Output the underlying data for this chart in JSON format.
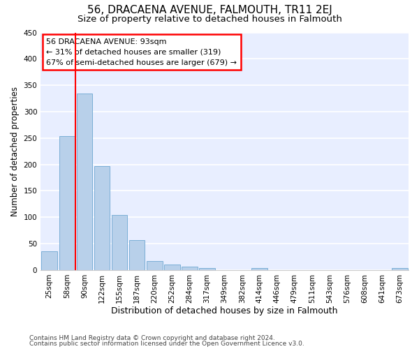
{
  "title": "56, DRACAENA AVENUE, FALMOUTH, TR11 2EJ",
  "subtitle": "Size of property relative to detached houses in Falmouth",
  "xlabel": "Distribution of detached houses by size in Falmouth",
  "ylabel": "Number of detached properties",
  "footnote1": "Contains HM Land Registry data © Crown copyright and database right 2024.",
  "footnote2": "Contains public sector information licensed under the Open Government Licence v3.0.",
  "bar_labels": [
    "25sqm",
    "58sqm",
    "90sqm",
    "122sqm",
    "155sqm",
    "187sqm",
    "220sqm",
    "252sqm",
    "284sqm",
    "317sqm",
    "349sqm",
    "382sqm",
    "414sqm",
    "446sqm",
    "479sqm",
    "511sqm",
    "543sqm",
    "576sqm",
    "608sqm",
    "641sqm",
    "673sqm"
  ],
  "bar_values": [
    35,
    254,
    335,
    197,
    105,
    57,
    17,
    10,
    7,
    4,
    0,
    0,
    4,
    0,
    0,
    0,
    0,
    0,
    0,
    0,
    4
  ],
  "bar_color": "#b8d0ea",
  "bar_edge_color": "#7aaed6",
  "ylim_max": 450,
  "yticks": [
    0,
    50,
    100,
    150,
    200,
    250,
    300,
    350,
    400,
    450
  ],
  "property_line_x": 1.5,
  "annotation_title": "56 DRACAENA AVENUE: 93sqm",
  "annotation_line1": "← 31% of detached houses are smaller (319)",
  "annotation_line2": "67% of semi-detached houses are larger (679) →",
  "bg_color": "#e8eeff",
  "grid_color": "#ffffff",
  "title_fontsize": 11,
  "subtitle_fontsize": 9.5,
  "ylabel_fontsize": 8.5,
  "xlabel_fontsize": 9,
  "tick_fontsize": 7.5,
  "annot_fontsize": 8,
  "foot_fontsize": 6.5
}
